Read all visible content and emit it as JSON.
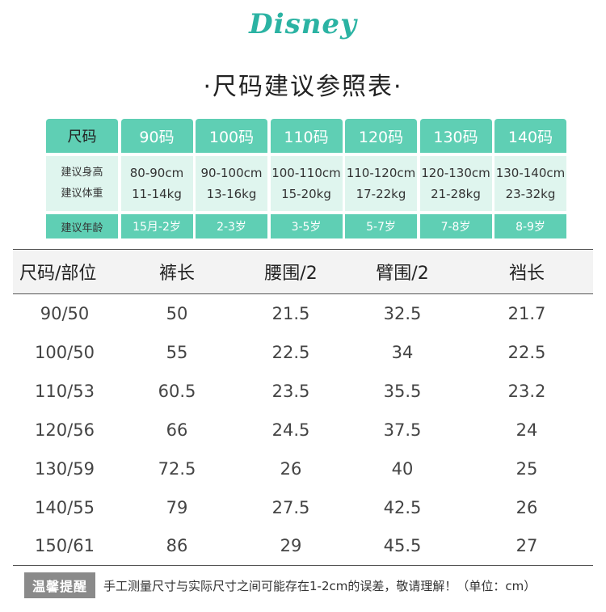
{
  "brand": {
    "logo_text": "Disney"
  },
  "page_title": "·尺码建议参照表·",
  "size_chart": {
    "header_label": "尺码",
    "sizes": [
      "90码",
      "100码",
      "110码",
      "120码",
      "130码",
      "140码"
    ],
    "height_label": "建议身高",
    "weight_label": "建议体重",
    "heights": [
      "80-90cm",
      "90-100cm",
      "100-110cm",
      "110-120cm",
      "120-130cm",
      "130-140cm"
    ],
    "weights": [
      "11-14kg",
      "13-16kg",
      "15-20kg",
      "17-22kg",
      "21-28kg",
      "23-32kg"
    ],
    "age_label": "建议年龄",
    "ages": [
      "15月-2岁",
      "2-3岁",
      "3-5岁",
      "5-7岁",
      "7-8岁",
      "8-9岁"
    ]
  },
  "measurements": {
    "columns": [
      "尺码/部位",
      "裤长",
      "腰围/2",
      "臂围/2",
      "裆长"
    ],
    "rows": [
      [
        "90/50",
        "50",
        "21.5",
        "32.5",
        "21.7"
      ],
      [
        "100/50",
        "55",
        "22.5",
        "34",
        "22.5"
      ],
      [
        "110/53",
        "60.5",
        "23.5",
        "35.5",
        "23.2"
      ],
      [
        "120/56",
        "66",
        "24.5",
        "37.5",
        "24"
      ],
      [
        "130/59",
        "72.5",
        "26",
        "40",
        "25"
      ],
      [
        "140/55",
        "79",
        "27.5",
        "42.5",
        "26"
      ],
      [
        "150/61",
        "86",
        "29",
        "45.5",
        "27"
      ]
    ]
  },
  "notice": {
    "tag": "温馨提醒",
    "text": "手工测量尺寸与实际尺寸之间可能存在1-2cm的误差，敬请理解！（单位：cm）"
  },
  "colors": {
    "accent": "#5fcfb4",
    "accent_light": "#dff5ee",
    "logo": "#2bb3a3"
  }
}
